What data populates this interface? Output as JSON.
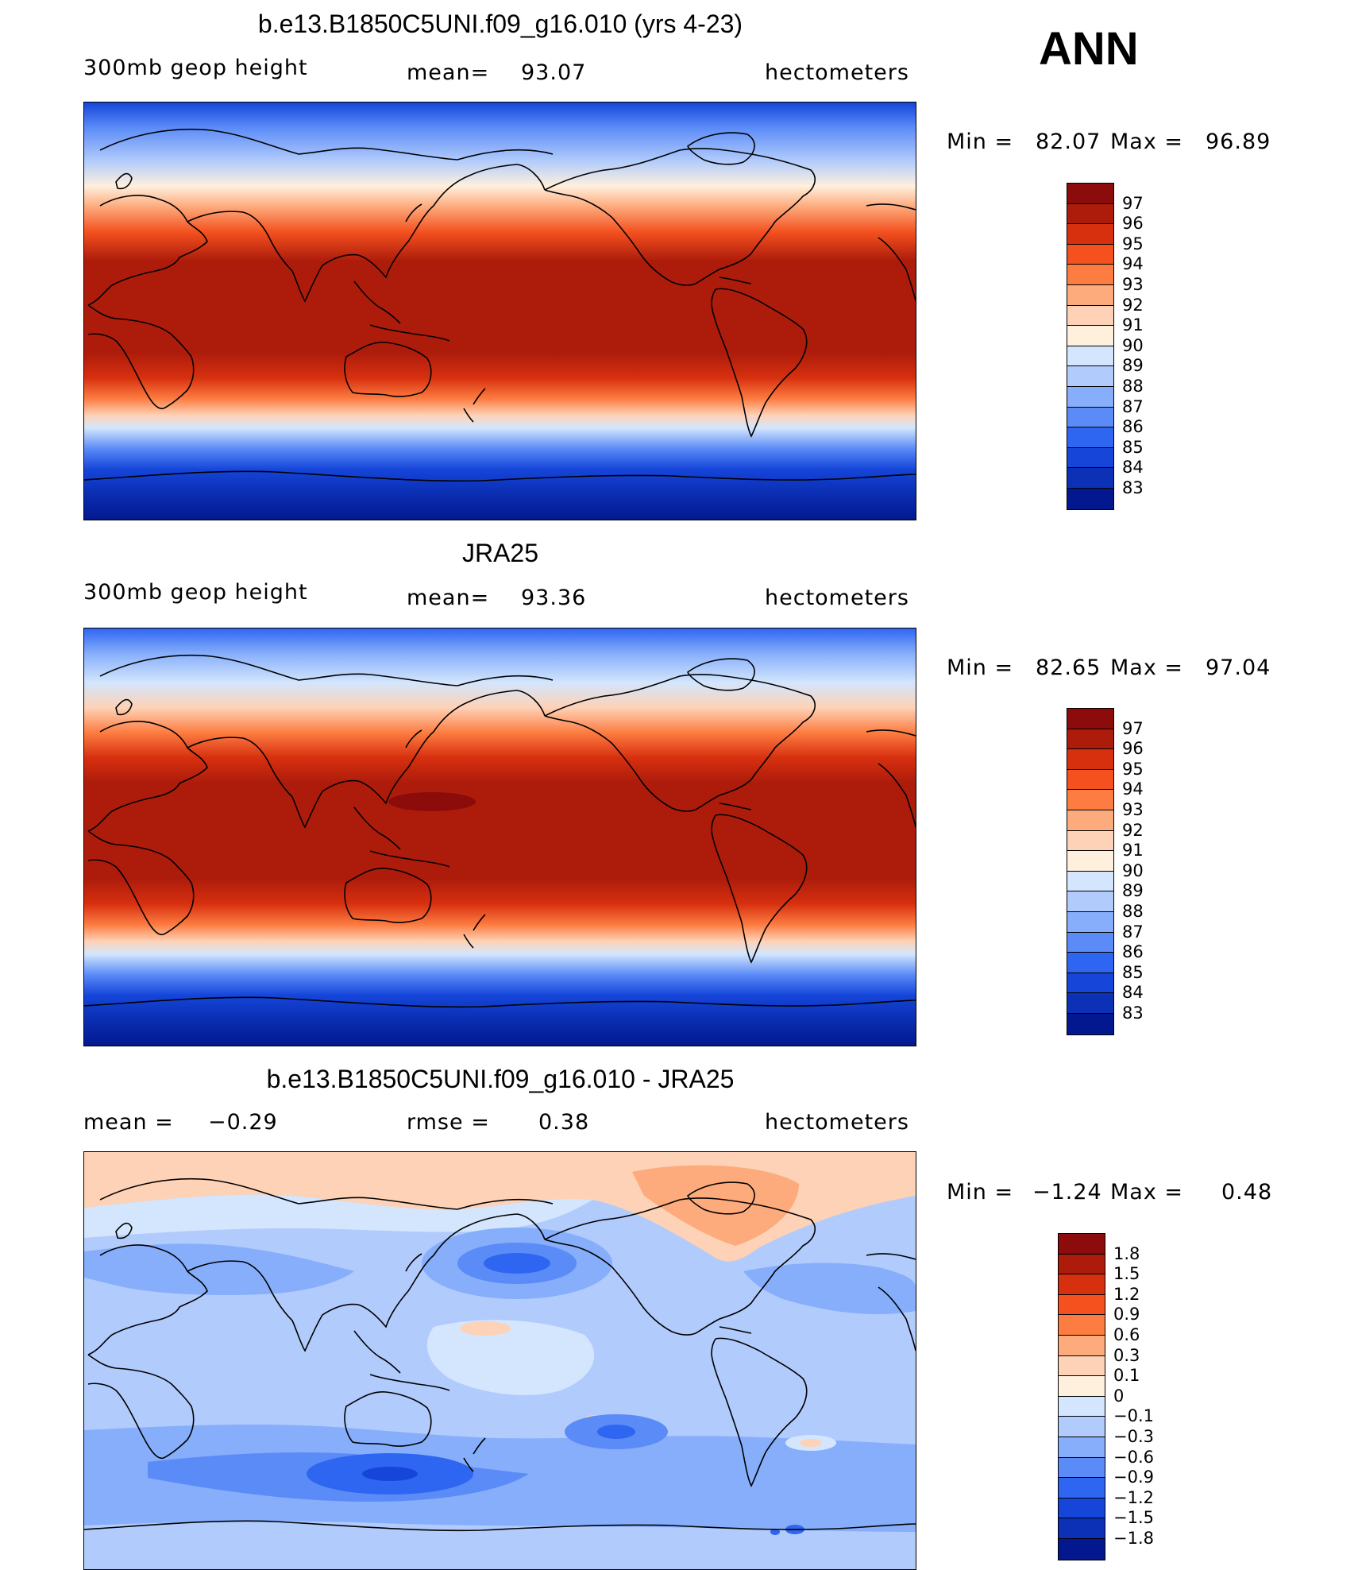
{
  "season": "ANN",
  "panels": [
    {
      "title": "b.e13.B1850C5UNI.f09_g16.010 (yrs 4-23)",
      "left_label": "300mb geop height",
      "mid_label": "mean=",
      "mid_value": "93.07",
      "right_label": "hectometers",
      "min_label": "Min =",
      "min_value": "82.07",
      "max_label": "Max =",
      "max_value": "96.89",
      "legend_colors": [
        "#8b0c0a",
        "#ad1c0b",
        "#d7300f",
        "#f4511f",
        "#fd7c41",
        "#fdaa7c",
        "#fed2b6",
        "#fff0de",
        "#d3e6fd",
        "#b1cbfc",
        "#86aefb",
        "#5b8bf7",
        "#2f66f1",
        "#1545d9",
        "#0c31b7",
        "#03188f"
      ],
      "legend_labels": [
        "97",
        "96",
        "95",
        "94",
        "93",
        "92",
        "91",
        "90",
        "89",
        "88",
        "87",
        "86",
        "85",
        "84",
        "83"
      ]
    },
    {
      "title": "JRA25",
      "left_label": "300mb geop height",
      "mid_label": "mean=",
      "mid_value": "93.36",
      "right_label": "hectometers",
      "min_label": "Min =",
      "min_value": "82.65",
      "max_label": "Max =",
      "max_value": "97.04",
      "legend_colors": [
        "#8b0c0a",
        "#ad1c0b",
        "#d7300f",
        "#f4511f",
        "#fd7c41",
        "#fdaa7c",
        "#fed2b6",
        "#fff0de",
        "#d3e6fd",
        "#b1cbfc",
        "#86aefb",
        "#5b8bf7",
        "#2f66f1",
        "#1545d9",
        "#0c31b7",
        "#03188f"
      ],
      "legend_labels": [
        "97",
        "96",
        "95",
        "94",
        "93",
        "92",
        "91",
        "90",
        "89",
        "88",
        "87",
        "86",
        "85",
        "84",
        "83"
      ]
    },
    {
      "title": "b.e13.B1850C5UNI.f09_g16.010 - JRA25",
      "left_label": "mean =",
      "left_value": "−0.29",
      "mid_label": "rmse =",
      "mid_value": "0.38",
      "right_label": "hectometers",
      "min_label": "Min =",
      "min_value": "−1.24",
      "max_label": "Max =",
      "max_value": "0.48",
      "legend_colors": [
        "#8b0c0a",
        "#ad1c0b",
        "#d7300f",
        "#f4511f",
        "#fd7c41",
        "#fdaa7c",
        "#fed2b6",
        "#fff0de",
        "#d3e6fd",
        "#b1cbfc",
        "#86aefb",
        "#5b8bf7",
        "#2f66f1",
        "#1545d9",
        "#0c31b7",
        "#03188f"
      ],
      "legend_labels": [
        "1.8",
        "1.5",
        "1.2",
        "0.9",
        "0.6",
        "0.3",
        "0.1",
        "0",
        "−0.1",
        "−0.3",
        "−0.6",
        "−0.9",
        "−1.2",
        "−1.5",
        "−1.8"
      ]
    }
  ]
}
